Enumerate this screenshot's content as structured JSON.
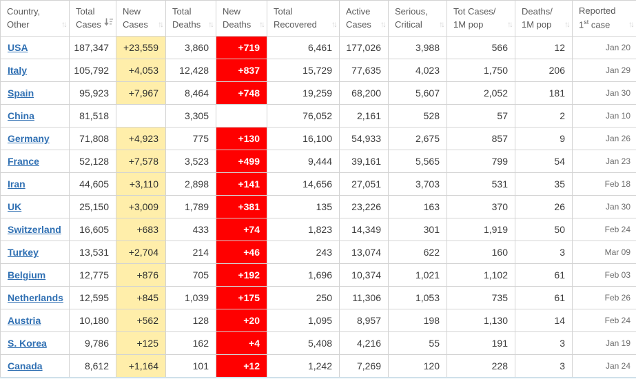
{
  "colors": {
    "new_cases_bg": "#ffeeaa",
    "new_deaths_bg": "#ff0000",
    "new_deaths_text": "#ffffff",
    "link_blue": "#3070b3",
    "header_text": "#5a5a5a",
    "body_text": "#3c3c3c",
    "date_text": "#6d6d6d",
    "grid_line": "#d3d3d3"
  },
  "sort_state": {
    "column": "Total Cases",
    "direction": "desc"
  },
  "table": {
    "headers": [
      {
        "line1": "Country,",
        "line2": "Other"
      },
      {
        "line1": "Total",
        "line2": "Cases"
      },
      {
        "line1": "New",
        "line2": "Cases"
      },
      {
        "line1": "Total",
        "line2": "Deaths"
      },
      {
        "line1": "New",
        "line2": "Deaths"
      },
      {
        "line1": "Total",
        "line2": "Recovered"
      },
      {
        "line1": "Active",
        "line2": "Cases"
      },
      {
        "line1": "Serious,",
        "line2": "Critical"
      },
      {
        "line1": "Tot Cases/",
        "line2": "1M pop"
      },
      {
        "line1": "Deaths/",
        "line2": "1M pop"
      },
      {
        "line1": "Reported",
        "line2_num": "1",
        "line2_sup": "st",
        "line2_rest": " case"
      }
    ],
    "rows": [
      [
        "USA",
        "187,347",
        "+23,559",
        "3,860",
        "+719",
        "6,461",
        "177,026",
        "3,988",
        "566",
        "12",
        "Jan 20"
      ],
      [
        "Italy",
        "105,792",
        "+4,053",
        "12,428",
        "+837",
        "15,729",
        "77,635",
        "4,023",
        "1,750",
        "206",
        "Jan 29"
      ],
      [
        "Spain",
        "95,923",
        "+7,967",
        "8,464",
        "+748",
        "19,259",
        "68,200",
        "5,607",
        "2,052",
        "181",
        "Jan 30"
      ],
      [
        "China",
        "81,518",
        "",
        "3,305",
        "",
        "76,052",
        "2,161",
        "528",
        "57",
        "2",
        "Jan 10"
      ],
      [
        "Germany",
        "71,808",
        "+4,923",
        "775",
        "+130",
        "16,100",
        "54,933",
        "2,675",
        "857",
        "9",
        "Jan 26"
      ],
      [
        "France",
        "52,128",
        "+7,578",
        "3,523",
        "+499",
        "9,444",
        "39,161",
        "5,565",
        "799",
        "54",
        "Jan 23"
      ],
      [
        "Iran",
        "44,605",
        "+3,110",
        "2,898",
        "+141",
        "14,656",
        "27,051",
        "3,703",
        "531",
        "35",
        "Feb 18"
      ],
      [
        "UK",
        "25,150",
        "+3,009",
        "1,789",
        "+381",
        "135",
        "23,226",
        "163",
        "370",
        "26",
        "Jan 30"
      ],
      [
        "Switzerland",
        "16,605",
        "+683",
        "433",
        "+74",
        "1,823",
        "14,349",
        "301",
        "1,919",
        "50",
        "Feb 24"
      ],
      [
        "Turkey",
        "13,531",
        "+2,704",
        "214",
        "+46",
        "243",
        "13,074",
        "622",
        "160",
        "3",
        "Mar 09"
      ],
      [
        "Belgium",
        "12,775",
        "+876",
        "705",
        "+192",
        "1,696",
        "10,374",
        "1,021",
        "1,102",
        "61",
        "Feb 03"
      ],
      [
        "Netherlands",
        "12,595",
        "+845",
        "1,039",
        "+175",
        "250",
        "11,306",
        "1,053",
        "735",
        "61",
        "Feb 26"
      ],
      [
        "Austria",
        "10,180",
        "+562",
        "128",
        "+20",
        "1,095",
        "8,957",
        "198",
        "1,130",
        "14",
        "Feb 24"
      ],
      [
        "S. Korea",
        "9,786",
        "+125",
        "162",
        "+4",
        "5,408",
        "4,216",
        "55",
        "191",
        "3",
        "Jan 19"
      ],
      [
        "Canada",
        "8,612",
        "+1,164",
        "101",
        "+12",
        "1,242",
        "7,269",
        "120",
        "228",
        "3",
        "Jan 24"
      ]
    ]
  }
}
